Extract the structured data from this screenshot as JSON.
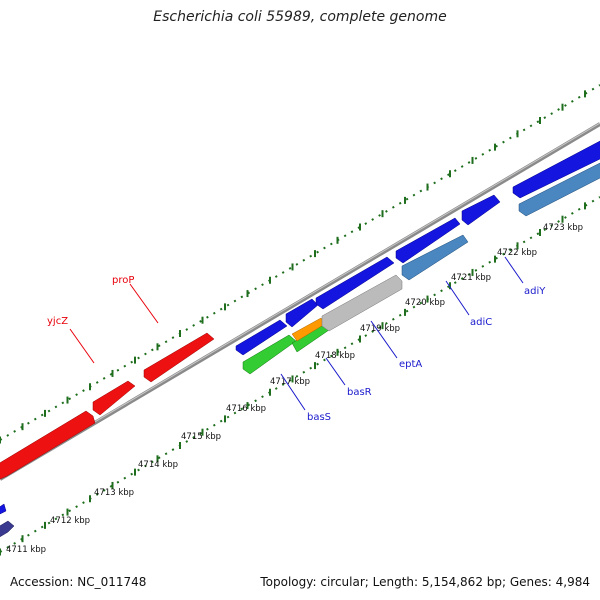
{
  "title": "Escherichia coli 55989, complete genome",
  "footer": {
    "accession": "Accession: NC_011748",
    "summary": "Topology: circular; Length: 5,154,862 bp; Genes: 4,984"
  },
  "kbp_labels": [
    "4711 kbp",
    "4712 kbp",
    "4713 kbp",
    "4714 kbp",
    "4715 kbp",
    "4716 kbp",
    "4717 kbp",
    "4718 kbp",
    "4719 kbp",
    "4720 kbp",
    "4721 kbp",
    "4722 kbp",
    "4723 kbp"
  ],
  "gene_labels": [
    {
      "id": "proP",
      "text": "proP",
      "color": "#e8000b"
    },
    {
      "id": "yjcZ",
      "text": "yjcZ",
      "color": "#e8000b"
    },
    {
      "id": "basS",
      "text": "basS",
      "color": "#1a1acc"
    },
    {
      "id": "basR",
      "text": "basR",
      "color": "#1a1acc"
    },
    {
      "id": "eptA",
      "text": "eptA",
      "color": "#1a1acc"
    },
    {
      "id": "adiC",
      "text": "adiC",
      "color": "#1a1acc"
    },
    {
      "id": "adiY",
      "text": "adiY",
      "color": "#1a1acc"
    }
  ],
  "colors": {
    "red_gene": "#ee1111",
    "blue_gene": "#1515e0",
    "steel_gene": "#4a86bf",
    "navy_gene": "#39398f",
    "green_gene": "#33cc33",
    "orange_gene": "#ff9900",
    "gray_gene": "#bbbbbb",
    "backbone": "#8a8a8a",
    "tick": "#1e6e1e"
  }
}
